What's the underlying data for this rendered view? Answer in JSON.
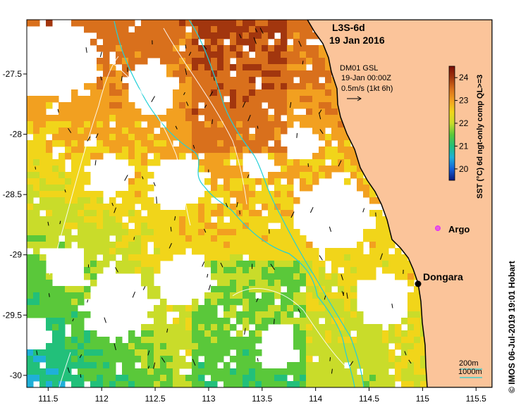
{
  "map": {
    "title_product": "L3S-6d",
    "title_date": "19 Jan 2016",
    "current_source": "DM01 GSL",
    "current_time": "19-Jan 00:00Z",
    "current_scale": "0.5m/s (1kt 6h)",
    "credit": "© IMOS 06-Jul-2019 19:01 Hobart",
    "x_ticks": [
      "111.5",
      "112",
      "112.5",
      "113",
      "113.5",
      "114",
      "114.5",
      "115",
      "115.5"
    ],
    "y_ticks": [
      "-27.5",
      "-28",
      "-28.5",
      "-29",
      "-29.5",
      "-30"
    ],
    "lon_range": [
      111.3,
      115.65
    ],
    "lat_range": [
      -30.1,
      -27.05
    ]
  },
  "colorbar": {
    "label": "SST (°C) 6d ngt-only comp QL>=3",
    "ticks": [
      "20",
      "21",
      "22",
      "23",
      "24"
    ],
    "range": [
      19.5,
      24.5
    ],
    "colors": [
      "#0b1a7a",
      "#1560d8",
      "#1fb0d8",
      "#22c07a",
      "#5ac83a",
      "#c9dc2a",
      "#f1d51a",
      "#f2a020",
      "#d9701c",
      "#a2360e",
      "#7a0e06"
    ]
  },
  "places": {
    "argo_label": "Argo",
    "argo_color": "#e23cf0",
    "dongara_label": "Dongara"
  },
  "legend": {
    "contour_200": "200m",
    "contour_1000": "1000m",
    "contour_color": "#22d0d8"
  },
  "colors": {
    "land": "#fbc49a",
    "coast": "#000000"
  }
}
